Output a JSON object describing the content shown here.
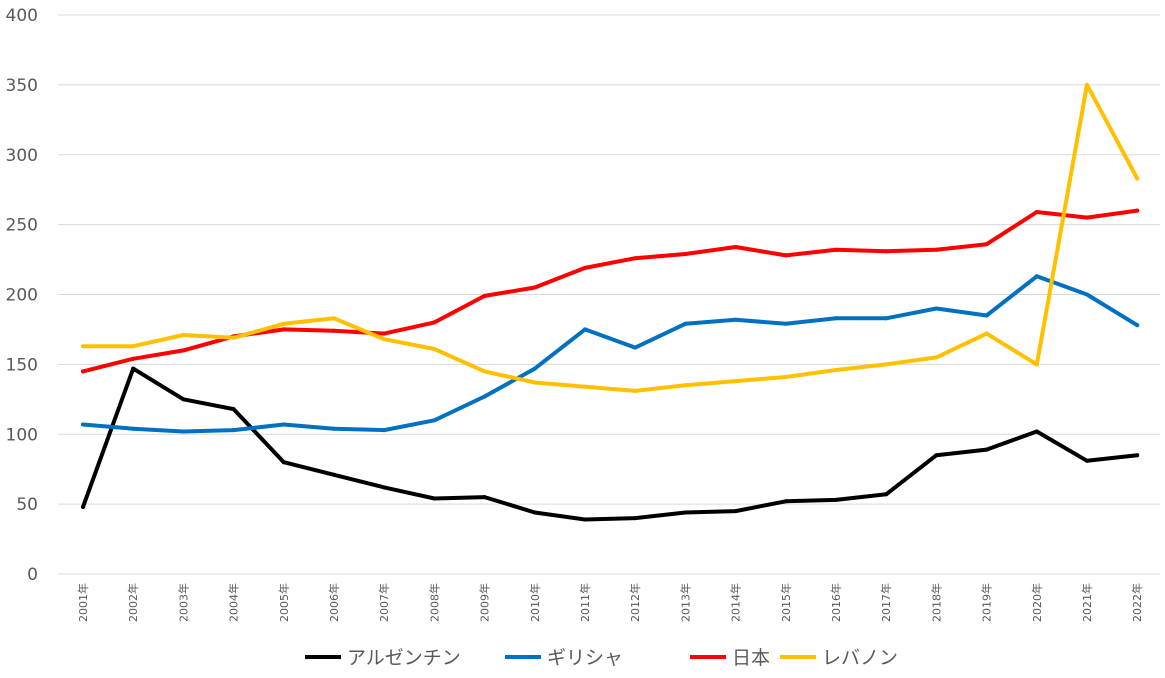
{
  "chart_data": {
    "type": "line",
    "title": "",
    "xlabel": "",
    "ylabel": "",
    "ylim": [
      0,
      400
    ],
    "yticks": [
      "0",
      "50",
      "100",
      "150",
      "200",
      "250",
      "300",
      "350",
      "400"
    ],
    "grid": true,
    "legend_position": "bottom",
    "categories": [
      "2001年",
      "2002年",
      "2003年",
      "2004年",
      "2005年",
      "2006年",
      "2007年",
      "2008年",
      "2009年",
      "2010年",
      "2011年",
      "2012年",
      "2013年",
      "2014年",
      "2015年",
      "2016年",
      "2017年",
      "2018年",
      "2019年",
      "2020年",
      "2021年",
      "2022年"
    ],
    "series": [
      {
        "name": "アルゼンチン",
        "color": "#000000",
        "values": [
          48,
          147,
          125,
          118,
          80,
          71,
          62,
          54,
          55,
          44,
          39,
          40,
          44,
          45,
          52,
          53,
          57,
          85,
          89,
          102,
          81,
          85
        ]
      },
      {
        "name": "ギリシャ",
        "color": "#0070c0",
        "values": [
          107,
          104,
          102,
          103,
          107,
          104,
          103,
          110,
          127,
          147,
          175,
          162,
          179,
          182,
          179,
          183,
          183,
          190,
          185,
          213,
          200,
          178
        ]
      },
      {
        "name": "日本",
        "color": "#ff0000",
        "values": [
          145,
          154,
          160,
          170,
          175,
          174,
          172,
          180,
          199,
          205,
          219,
          226,
          229,
          234,
          228,
          232,
          231,
          232,
          236,
          259,
          255,
          260
        ]
      },
      {
        "name": "レバノン",
        "color": "#ffc000",
        "values": [
          163,
          163,
          171,
          169,
          179,
          183,
          168,
          161,
          145,
          137,
          134,
          131,
          135,
          138,
          141,
          146,
          150,
          155,
          172,
          150,
          350,
          283
        ]
      }
    ]
  }
}
